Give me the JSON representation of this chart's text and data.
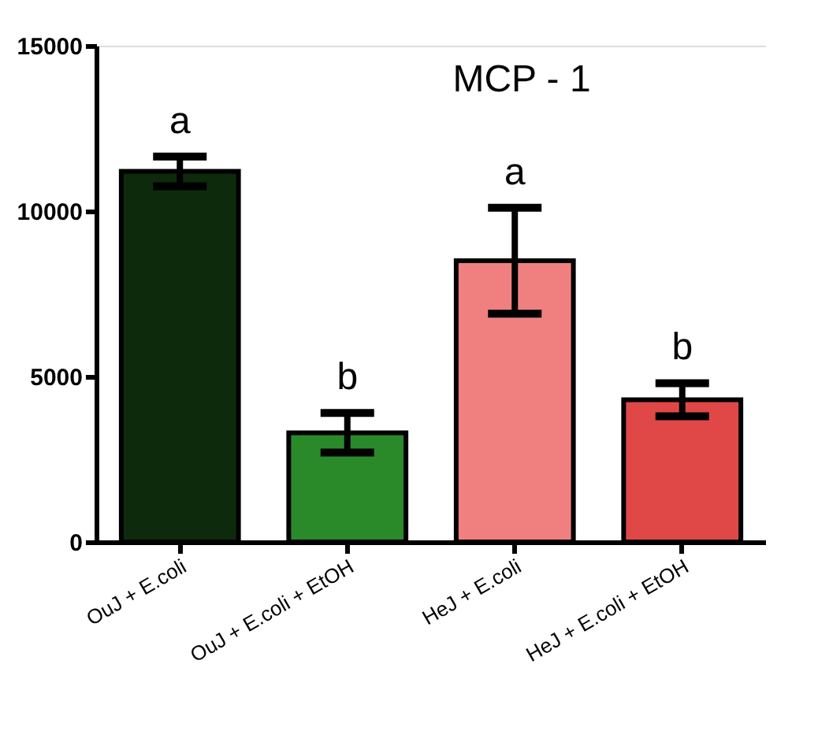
{
  "chart_data": {
    "type": "bar",
    "title": "MCP - 1",
    "categories": [
      "OuJ + E.coli",
      "OuJ + E.coli + EtOH",
      "HeJ + E.coli",
      "HeJ + E.coli + EtOH"
    ],
    "values": [
      11200,
      3300,
      8500,
      4300
    ],
    "errors": [
      450,
      600,
      1600,
      500
    ],
    "colors": [
      "#0d2a0d",
      "#2a8a2a",
      "#f08080",
      "#e04848"
    ],
    "ylim": [
      0,
      15000
    ],
    "yticks": [
      0,
      5000,
      10000,
      15000
    ],
    "grid": false,
    "legend": false,
    "annotations": [
      "a",
      "b",
      "a",
      "b"
    ]
  }
}
